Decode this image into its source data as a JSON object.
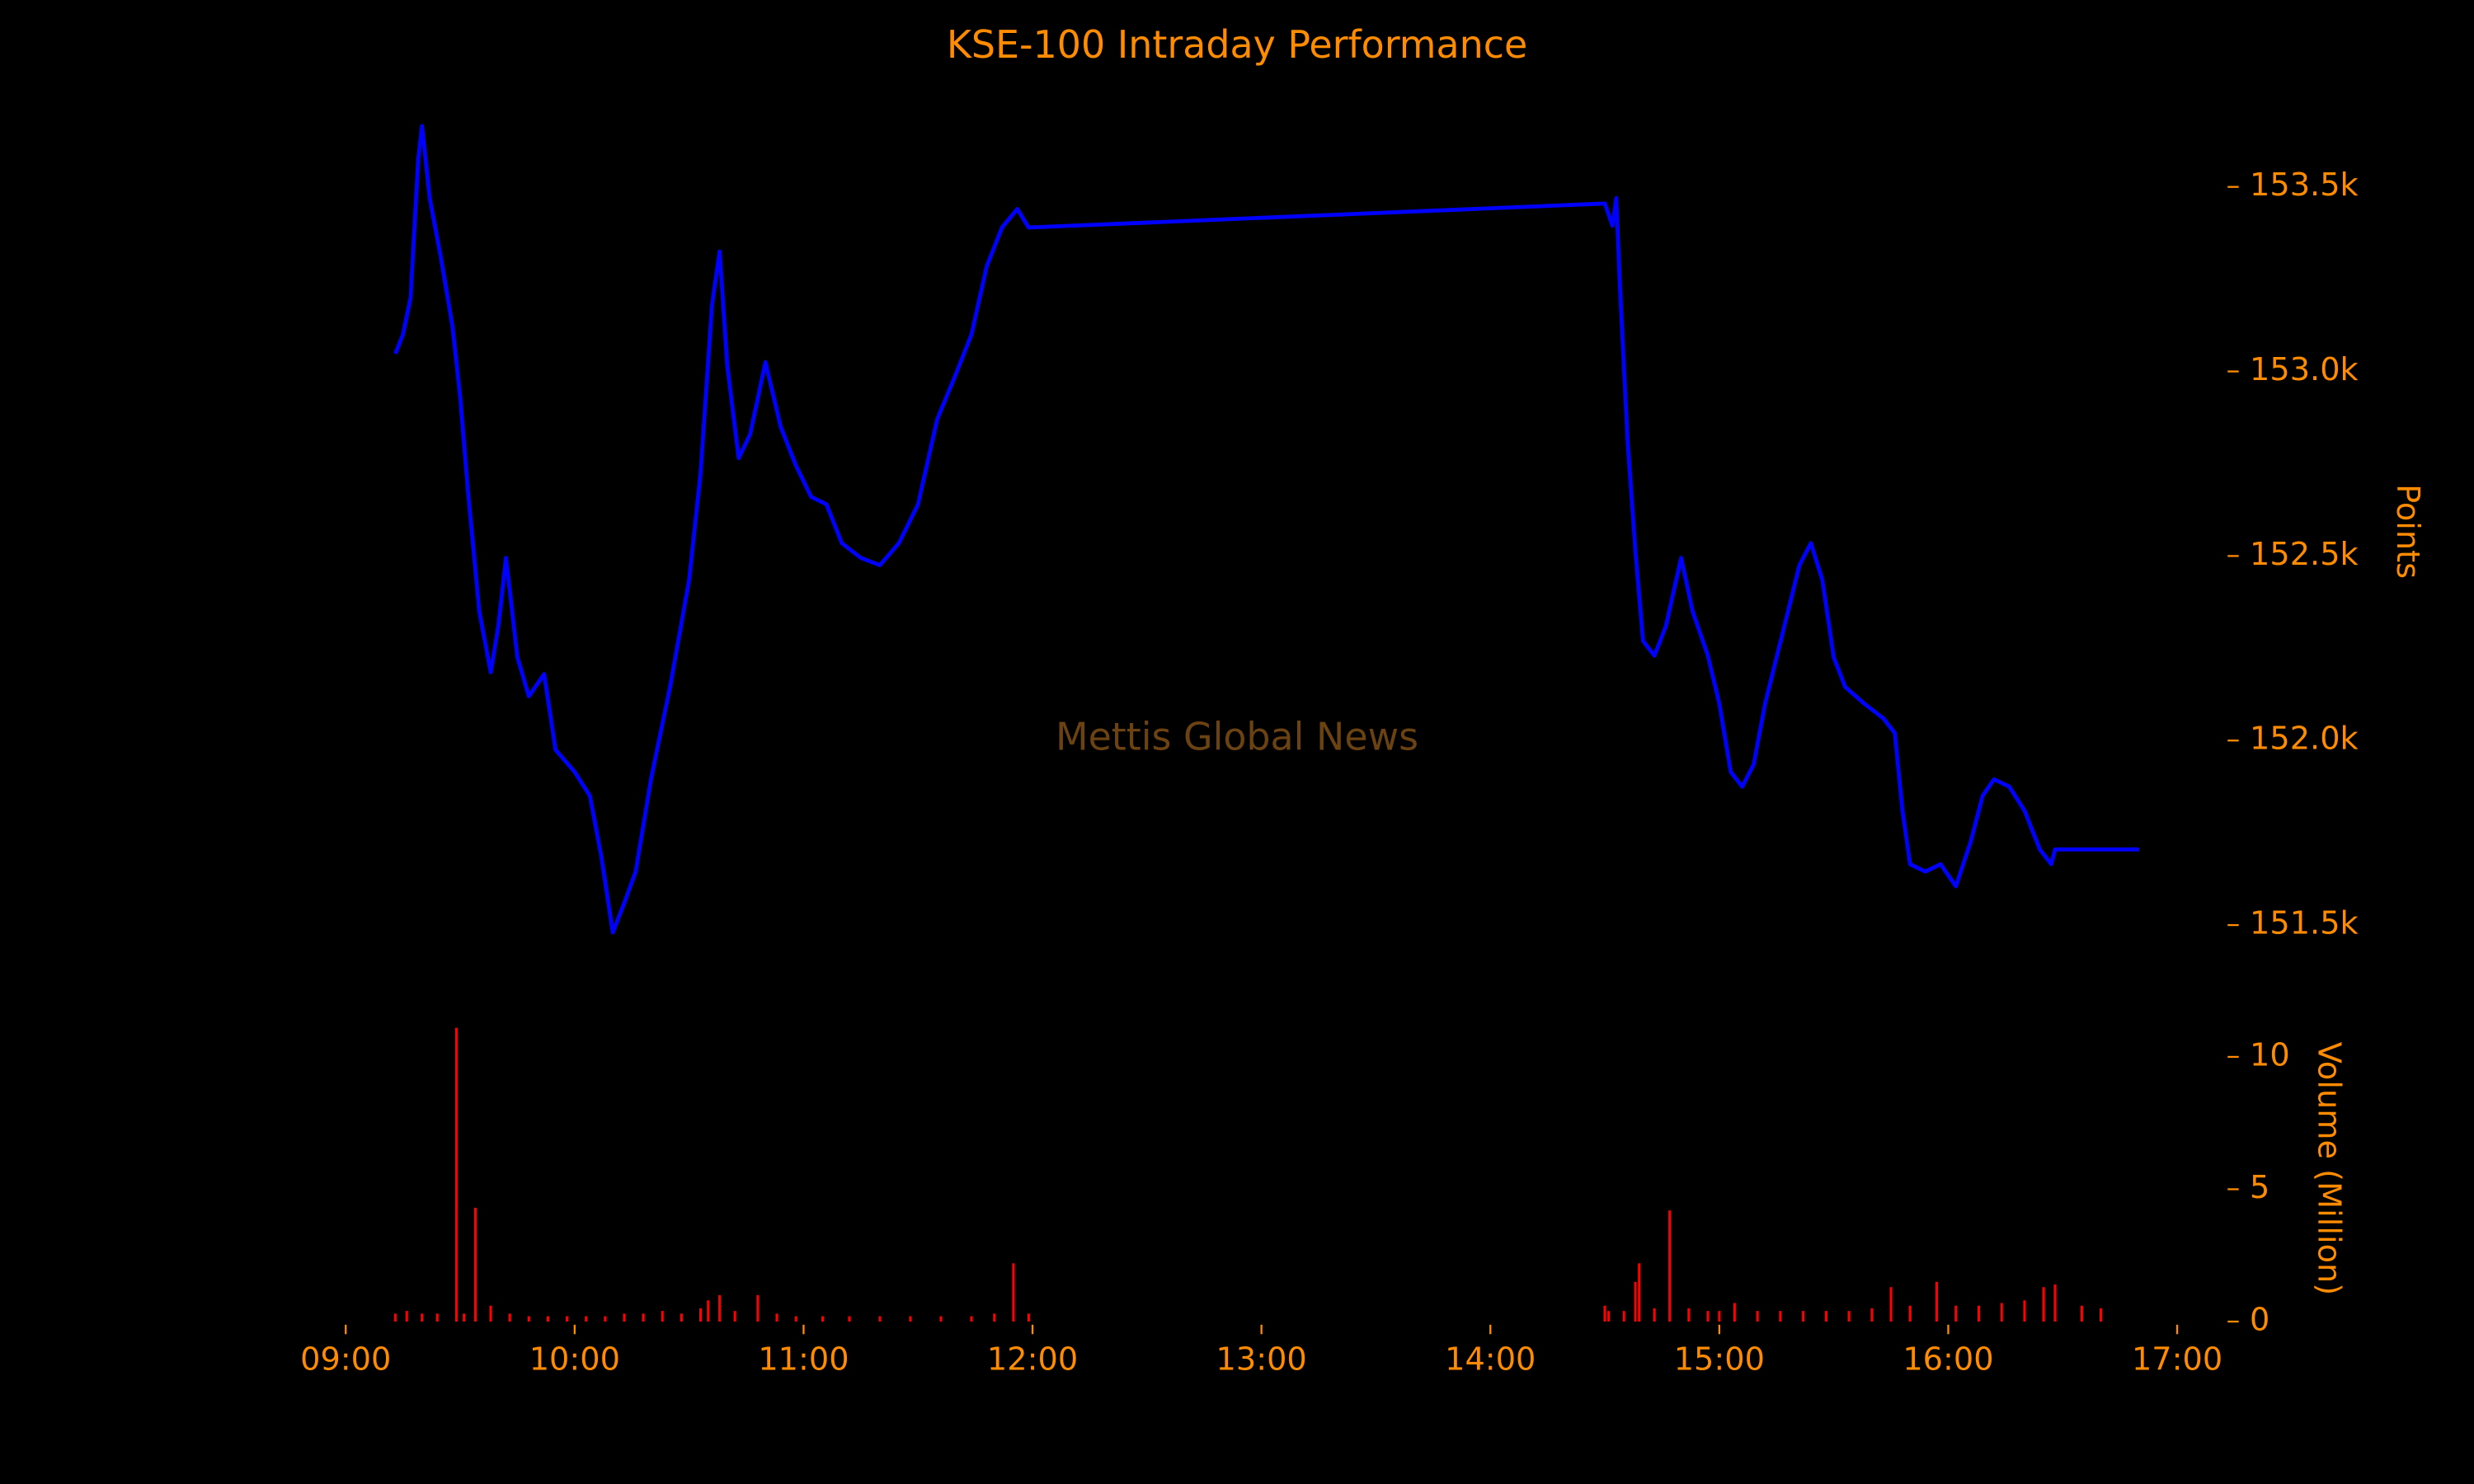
{
  "chart_data": [
    {
      "type": "line",
      "title": "KSE-100 Intraday Performance",
      "annotation": "Mettis Global News",
      "ylabel": "Points",
      "xlim": [
        "09:00",
        "17:00"
      ],
      "ylim": [
        151400,
        153750
      ],
      "yticks": [
        {
          "value": 151500,
          "label": "151.5k"
        },
        {
          "value": 152000,
          "label": "152.0k"
        },
        {
          "value": 152500,
          "label": "152.5k"
        },
        {
          "value": 153000,
          "label": "153.0k"
        },
        {
          "value": 153500,
          "label": "153.5k"
        }
      ],
      "series": [
        {
          "color": "#0000ff",
          "x": [
            "09:13",
            "09:15",
            "09:17",
            "09:19",
            "09:20",
            "09:22",
            "09:25",
            "09:28",
            "09:30",
            "09:32",
            "09:35",
            "09:38",
            "09:40",
            "09:42",
            "09:45",
            "09:48",
            "09:52",
            "09:55",
            "10:00",
            "10:04",
            "10:07",
            "10:10",
            "10:13",
            "10:16",
            "10:20",
            "10:25",
            "10:30",
            "10:33",
            "10:36",
            "10:38",
            "10:40",
            "10:43",
            "10:46",
            "10:50",
            "10:54",
            "10:58",
            "11:02",
            "11:06",
            "11:10",
            "11:15",
            "11:20",
            "11:25",
            "11:30",
            "11:35",
            "11:40",
            "11:44",
            "11:48",
            "11:52",
            "11:56",
            "11:59",
            "14:30",
            "14:32",
            "14:33",
            "14:34",
            "14:36",
            "14:38",
            "14:40",
            "14:43",
            "14:46",
            "14:50",
            "14:53",
            "14:57",
            "15:00",
            "15:03",
            "15:06",
            "15:09",
            "15:12",
            "15:15",
            "15:18",
            "15:21",
            "15:24",
            "15:27",
            "15:30",
            "15:33",
            "15:38",
            "15:43",
            "15:46",
            "15:48",
            "15:50",
            "15:54",
            "15:58",
            "16:02",
            "16:06",
            "16:09",
            "16:12",
            "16:16",
            "16:20",
            "16:24",
            "16:27",
            "16:28",
            "16:50"
          ],
          "values": [
            153048,
            153100,
            153200,
            153575,
            153665,
            153470,
            153305,
            153120,
            152930,
            152680,
            152350,
            152185,
            152310,
            152495,
            152225,
            152120,
            152180,
            151975,
            151915,
            151850,
            151685,
            151480,
            151560,
            151645,
            151895,
            152145,
            152435,
            152725,
            153180,
            153325,
            153015,
            152765,
            152830,
            153025,
            152850,
            152745,
            152660,
            152640,
            152535,
            152495,
            152475,
            152535,
            152640,
            152870,
            152995,
            153100,
            153285,
            153390,
            153440,
            153390,
            153455,
            153395,
            153470,
            153220,
            152805,
            152515,
            152270,
            152230,
            152310,
            152495,
            152350,
            152230,
            152100,
            151915,
            151875,
            151935,
            152100,
            152225,
            152350,
            152475,
            152535,
            152435,
            152225,
            152145,
            152100,
            152060,
            152020,
            151810,
            151665,
            151645,
            151665,
            151605,
            151730,
            151850,
            151895,
            151875,
            151810,
            151705,
            151665,
            151705,
            151705
          ]
        }
      ]
    },
    {
      "type": "bar",
      "ylabel": "Volume (Million)",
      "xlim": [
        "09:00",
        "17:00"
      ],
      "xticks": [
        "09:00",
        "10:00",
        "11:00",
        "12:00",
        "13:00",
        "14:00",
        "15:00",
        "16:00",
        "17:00"
      ],
      "ylim": [
        0,
        11.5
      ],
      "yticks": [
        0,
        5,
        10
      ],
      "series": [
        {
          "color": "#ff0000",
          "x": [
            "09:13",
            "09:16",
            "09:20",
            "09:24",
            "09:29",
            "09:31",
            "09:34",
            "09:38",
            "09:43",
            "09:48",
            "09:53",
            "09:58",
            "10:03",
            "10:08",
            "10:13",
            "10:18",
            "10:23",
            "10:28",
            "10:33",
            "10:35",
            "10:38",
            "10:42",
            "10:48",
            "10:53",
            "10:58",
            "11:05",
            "11:12",
            "11:20",
            "11:28",
            "11:36",
            "11:44",
            "11:50",
            "11:55",
            "11:59",
            "14:30",
            "14:31",
            "14:35",
            "14:38",
            "14:39",
            "14:43",
            "14:47",
            "14:52",
            "14:57",
            "15:00",
            "15:04",
            "15:10",
            "15:16",
            "15:22",
            "15:28",
            "15:34",
            "15:40",
            "15:45",
            "15:50",
            "15:57",
            "16:02",
            "16:08",
            "16:14",
            "16:20",
            "16:25",
            "16:28",
            "16:35",
            "16:40"
          ],
          "values": [
            0.3,
            0.4,
            0.3,
            0.3,
            11.1,
            0.3,
            4.3,
            0.6,
            0.3,
            0.2,
            0.2,
            0.2,
            0.2,
            0.2,
            0.3,
            0.3,
            0.4,
            0.3,
            0.5,
            0.8,
            1.0,
            0.4,
            1.0,
            0.3,
            0.2,
            0.2,
            0.2,
            0.2,
            0.2,
            0.2,
            0.2,
            0.3,
            2.2,
            0.3,
            0.6,
            0.4,
            0.4,
            1.5,
            2.2,
            0.5,
            4.2,
            0.5,
            0.4,
            0.4,
            0.7,
            0.4,
            0.4,
            0.4,
            0.4,
            0.4,
            0.5,
            1.3,
            0.6,
            1.5,
            0.6,
            0.6,
            0.7,
            0.8,
            1.3,
            1.4,
            0.6,
            0.5
          ]
        }
      ]
    }
  ]
}
